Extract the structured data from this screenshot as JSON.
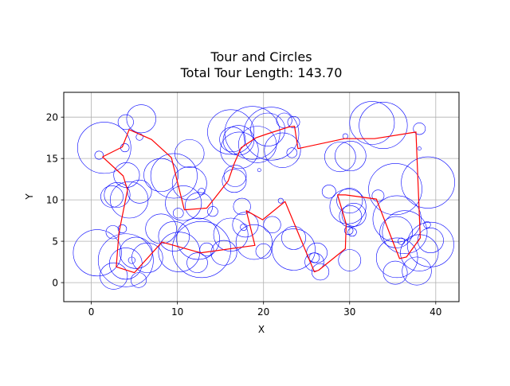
{
  "chart_data": {
    "type": "line",
    "title": "Tour and Circles",
    "subtitle": "Total Tour Length: 143.70",
    "xlabel": "X",
    "ylabel": "Y",
    "xlim": [
      -3.2,
      42.7
    ],
    "ylim": [
      -2.3,
      23.0
    ],
    "xticks": [
      0,
      10,
      20,
      30,
      40
    ],
    "yticks": [
      0,
      5,
      10,
      15,
      20
    ],
    "grid": true,
    "tour_color": "#ff0000",
    "circle_color": "#0000ff",
    "tour": [
      [
        1.3,
        15.2
      ],
      [
        3.6,
        16.4
      ],
      [
        4.4,
        18.5
      ],
      [
        7.0,
        17.3
      ],
      [
        9.3,
        15.1
      ],
      [
        10.8,
        8.8
      ],
      [
        13.4,
        9.0
      ],
      [
        14.4,
        10.3
      ],
      [
        15.9,
        12.3
      ],
      [
        16.6,
        14.4
      ],
      [
        17.4,
        16.3
      ],
      [
        19.1,
        17.5
      ],
      [
        20.5,
        18.0
      ],
      [
        22.9,
        18.8
      ],
      [
        23.6,
        18.9
      ],
      [
        24.0,
        16.2
      ],
      [
        29.4,
        17.4
      ],
      [
        32.9,
        17.4
      ],
      [
        37.7,
        18.2
      ],
      [
        38.2,
        5.4
      ],
      [
        36.6,
        3.1
      ],
      [
        35.8,
        2.9
      ],
      [
        35.0,
        5.0
      ],
      [
        33.1,
        10.1
      ],
      [
        29.5,
        10.6
      ],
      [
        28.6,
        10.6
      ],
      [
        29.6,
        7.1
      ],
      [
        29.5,
        4.1
      ],
      [
        26.4,
        1.5
      ],
      [
        25.9,
        1.3
      ],
      [
        24.3,
        5.3
      ],
      [
        22.5,
        9.8
      ],
      [
        19.9,
        7.6
      ],
      [
        18.0,
        8.7
      ],
      [
        19.0,
        4.5
      ],
      [
        12.7,
        3.6
      ],
      [
        8.2,
        4.9
      ],
      [
        5.0,
        1.2
      ],
      [
        2.9,
        1.9
      ],
      [
        3.2,
        6.0
      ],
      [
        4.2,
        11.2
      ],
      [
        3.7,
        12.9
      ],
      [
        1.3,
        15.2
      ]
    ],
    "circles": [
      [
        1.5,
        16.3,
        3.1
      ],
      [
        0.9,
        15.4,
        0.5
      ],
      [
        3.9,
        16.3,
        0.5
      ],
      [
        5.6,
        17.6,
        0.4
      ],
      [
        4.0,
        19.4,
        0.9
      ],
      [
        5.8,
        19.8,
        1.7
      ],
      [
        4.1,
        13.0,
        1.5
      ],
      [
        2.4,
        10.4,
        1.3
      ],
      [
        3.0,
        10.6,
        1.5
      ],
      [
        4.4,
        10.0,
        2.2
      ],
      [
        5.6,
        11.0,
        1.4
      ],
      [
        8.1,
        13.0,
        2.0
      ],
      [
        9.6,
        12.9,
        2.7
      ],
      [
        11.4,
        15.6,
        1.7
      ],
      [
        11.4,
        12.0,
        2.0
      ],
      [
        10.7,
        9.6,
        2.1
      ],
      [
        12.5,
        9.3,
        1.6
      ],
      [
        10.1,
        8.4,
        0.6
      ],
      [
        12.8,
        11.0,
        0.4
      ],
      [
        14.1,
        8.6,
        0.6
      ],
      [
        8.1,
        6.5,
        1.8
      ],
      [
        9.6,
        5.6,
        1.8
      ],
      [
        12.4,
        5.3,
        2.5
      ],
      [
        10.2,
        3.7,
        2.4
      ],
      [
        12.8,
        4.0,
        3.4
      ],
      [
        12.3,
        2.4,
        1.2
      ],
      [
        13.4,
        4.0,
        0.8
      ],
      [
        15.4,
        3.6,
        1.5
      ],
      [
        16.2,
        5.8,
        2.0
      ],
      [
        17.5,
        9.2,
        1.0
      ],
      [
        17.9,
        7.0,
        1.5
      ],
      [
        18.9,
        4.9,
        2.1
      ],
      [
        20.0,
        3.8,
        0.9
      ],
      [
        17.7,
        6.7,
        0.4
      ],
      [
        21.0,
        7.0,
        1.0
      ],
      [
        22.0,
        9.9,
        0.3
      ],
      [
        23.5,
        5.4,
        1.4
      ],
      [
        23.5,
        4.0,
        2.5
      ],
      [
        25.9,
        2.5,
        1.1
      ],
      [
        26.2,
        3.6,
        1.2
      ],
      [
        26.6,
        1.3,
        1.0
      ],
      [
        25.9,
        3.0,
        0.6
      ],
      [
        27.6,
        11.0,
        0.8
      ],
      [
        28.9,
        15.2,
        1.8
      ],
      [
        30.1,
        15.3,
        1.8
      ],
      [
        29.5,
        17.7,
        0.3
      ],
      [
        29.8,
        9.2,
        2.1
      ],
      [
        30.0,
        9.9,
        1.5
      ],
      [
        30.5,
        8.2,
        1.4
      ],
      [
        30.1,
        8.0,
        1.3
      ],
      [
        29.9,
        6.3,
        0.5
      ],
      [
        30.3,
        6.1,
        0.5
      ],
      [
        30.0,
        2.7,
        1.3
      ],
      [
        32.6,
        19.3,
        2.6
      ],
      [
        33.9,
        19.0,
        2.8
      ],
      [
        33.3,
        10.5,
        0.7
      ],
      [
        35.3,
        11.3,
        3.1
      ],
      [
        35.5,
        7.7,
        2.8
      ],
      [
        35.4,
        6.1,
        1.9
      ],
      [
        36.4,
        6.1,
        2.6
      ],
      [
        36.0,
        5.0,
        0.4
      ],
      [
        35.5,
        3.0,
        2.4
      ],
      [
        35.3,
        1.2,
        1.4
      ],
      [
        37.8,
        1.4,
        1.7
      ],
      [
        38.1,
        3.6,
        2.2
      ],
      [
        39.4,
        5.1,
        1.5
      ],
      [
        39.4,
        4.6,
        2.7
      ],
      [
        39.0,
        7.0,
        0.4
      ],
      [
        38.1,
        16.2,
        0.2
      ],
      [
        38.1,
        18.6,
        0.7
      ],
      [
        39.1,
        12.1,
        3.1
      ],
      [
        16.2,
        18.2,
        2.7
      ],
      [
        16.4,
        17.3,
        1.5
      ],
      [
        17.2,
        16.0,
        2.2
      ],
      [
        17.1,
        17.2,
        1.8
      ],
      [
        18.7,
        18.1,
        3.2
      ],
      [
        19.3,
        16.7,
        2.2
      ],
      [
        20.9,
        18.0,
        3.2
      ],
      [
        20.5,
        18.5,
        2.0
      ],
      [
        19.5,
        13.6,
        0.2
      ],
      [
        22.2,
        16.0,
        2.1
      ],
      [
        22.4,
        19.6,
        0.9
      ],
      [
        23.5,
        19.4,
        0.7
      ],
      [
        23.3,
        15.7,
        0.6
      ],
      [
        16.7,
        12.9,
        1.3
      ],
      [
        16.6,
        12.3,
        1.4
      ],
      [
        4.0,
        2.3,
        1.9
      ],
      [
        4.7,
        2.7,
        0.4
      ],
      [
        5.2,
        3.6,
        1.9
      ],
      [
        6.5,
        3.0,
        1.8
      ],
      [
        5.5,
        0.3,
        0.9
      ],
      [
        4.0,
        2.7,
        3.2
      ],
      [
        2.6,
        0.8,
        1.6
      ],
      [
        0.7,
        3.6,
        2.8
      ],
      [
        2.5,
        6.1,
        0.8
      ],
      [
        3.6,
        6.5,
        0.5
      ]
    ]
  }
}
